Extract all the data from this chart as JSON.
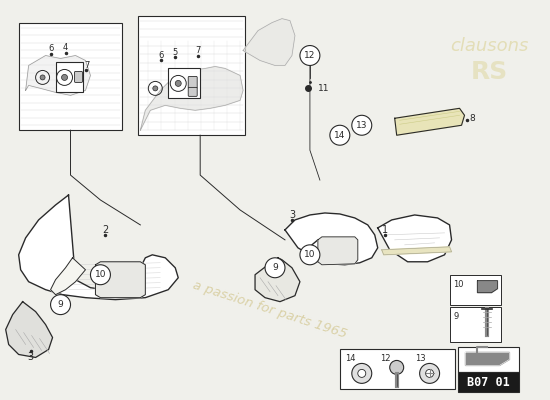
{
  "bg_color": "#f0f0eb",
  "line_color": "#2a2a2a",
  "fill_color": "#ffffff",
  "title": "B07 01",
  "watermark": "a passion for parts 1965"
}
